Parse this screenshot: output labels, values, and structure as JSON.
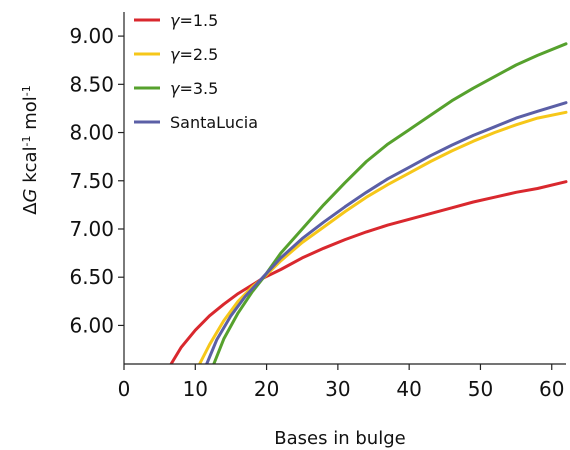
{
  "chart_data": {
    "type": "line",
    "title": "",
    "xlabel": "Bases in bulge",
    "ylabel": {
      "prefix": "Δ",
      "symbol": "G",
      "unit": " kcal",
      "sup1": "-1",
      "unit2": " mol",
      "sup2": "-1"
    },
    "xlim": [
      0,
      62
    ],
    "ylim": [
      5.6,
      9.25
    ],
    "x_ticks": [
      0,
      10,
      20,
      30,
      40,
      50,
      60
    ],
    "x_tick_labels": [
      "0",
      "10",
      "20",
      "30",
      "40",
      "50",
      "60"
    ],
    "y_ticks": [
      6.0,
      6.5,
      7.0,
      7.5,
      8.0,
      8.5,
      9.0
    ],
    "y_tick_labels": [
      "6.00",
      "6.50",
      "7.00",
      "7.50",
      "8.00",
      "8.50",
      "9.00"
    ],
    "grid": false,
    "legend_position": "top-left",
    "series": [
      {
        "name": "γ=1.5",
        "legend_italic": "γ",
        "legend_rest": "=1.5",
        "color": "#d9282e",
        "x": [
          6.6,
          8,
          10,
          12,
          14,
          16,
          18,
          19.5,
          22,
          25,
          28,
          31,
          34,
          37,
          40,
          43,
          46,
          49,
          52,
          55,
          58,
          62
        ],
        "y": [
          5.6,
          5.77,
          5.95,
          6.1,
          6.22,
          6.33,
          6.42,
          6.49,
          6.58,
          6.7,
          6.8,
          6.89,
          6.97,
          7.04,
          7.1,
          7.16,
          7.22,
          7.28,
          7.33,
          7.38,
          7.42,
          7.49
        ]
      },
      {
        "name": "γ=2.5",
        "legend_italic": "γ",
        "legend_rest": "=2.5",
        "color": "#f6c719",
        "x": [
          10.6,
          12,
          14,
          16,
          18,
          19.5,
          22,
          25,
          28,
          31,
          34,
          37,
          40,
          43,
          46,
          49,
          52,
          55,
          58,
          62
        ],
        "y": [
          5.6,
          5.8,
          6.05,
          6.25,
          6.4,
          6.49,
          6.67,
          6.86,
          7.02,
          7.18,
          7.33,
          7.46,
          7.58,
          7.7,
          7.81,
          7.91,
          8.0,
          8.08,
          8.15,
          8.21
        ]
      },
      {
        "name": "γ=3.5",
        "legend_italic": "γ",
        "legend_rest": "=3.5",
        "color": "#56a12d",
        "x": [
          12.6,
          14,
          16,
          18,
          19.5,
          22,
          25,
          28,
          31,
          34,
          37,
          40,
          43,
          46,
          49,
          52,
          55,
          58,
          62
        ],
        "y": [
          5.6,
          5.86,
          6.13,
          6.35,
          6.49,
          6.75,
          7.0,
          7.25,
          7.48,
          7.7,
          7.88,
          8.03,
          8.18,
          8.33,
          8.46,
          8.58,
          8.7,
          8.8,
          8.92
        ]
      },
      {
        "name": "SantaLucia",
        "legend_italic": "",
        "legend_rest": "SantaLucia",
        "color": "#5b5fa6",
        "x": [
          11.6,
          13,
          15,
          17,
          19.5,
          22,
          25,
          28,
          31,
          34,
          37,
          40,
          43,
          46,
          49,
          52,
          55,
          58,
          62
        ],
        "y": [
          5.6,
          5.85,
          6.1,
          6.3,
          6.5,
          6.7,
          6.9,
          7.07,
          7.23,
          7.38,
          7.52,
          7.64,
          7.76,
          7.87,
          7.97,
          8.06,
          8.15,
          8.22,
          8.31
        ]
      }
    ]
  }
}
